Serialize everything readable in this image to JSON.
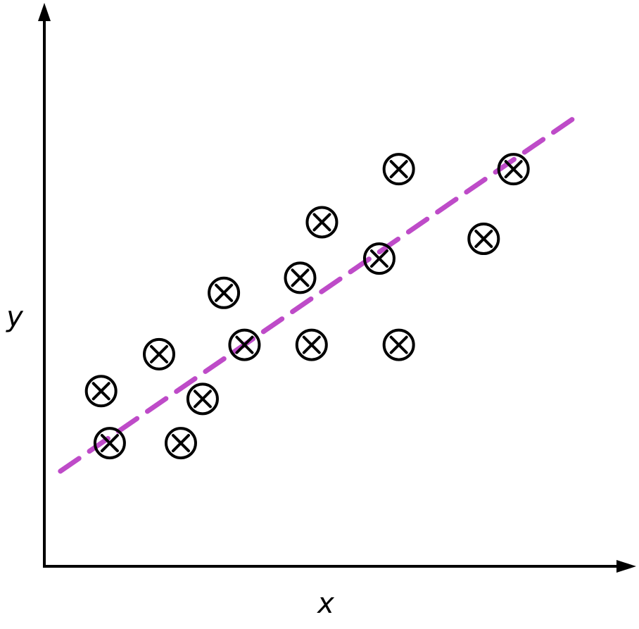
{
  "chart_data": {
    "type": "scatter",
    "title": "",
    "xlabel": "x",
    "ylabel": "y",
    "xlim": [
      0,
      100
    ],
    "ylim": [
      0,
      100
    ],
    "grid": false,
    "legend": "none",
    "marker": "circled-x",
    "series": [
      {
        "points": [
          {
            "x": 9.9,
            "y": 33.7
          },
          {
            "x": 11.4,
            "y": 23.7
          },
          {
            "x": 20.0,
            "y": 40.8
          },
          {
            "x": 23.8,
            "y": 23.7
          },
          {
            "x": 27.6,
            "y": 32.2
          },
          {
            "x": 31.3,
            "y": 52.6
          },
          {
            "x": 34.9,
            "y": 42.6
          },
          {
            "x": 44.6,
            "y": 55.5
          },
          {
            "x": 48.4,
            "y": 66.2
          },
          {
            "x": 46.6,
            "y": 42.6
          },
          {
            "x": 58.4,
            "y": 59.2
          },
          {
            "x": 61.8,
            "y": 76.4
          },
          {
            "x": 61.8,
            "y": 42.6
          },
          {
            "x": 76.6,
            "y": 63.0
          },
          {
            "x": 81.8,
            "y": 76.4
          }
        ]
      }
    ],
    "trend_line": {
      "style": "dashed",
      "color": "#BE4BC8",
      "start": {
        "x": 2.8,
        "y": 18.3
      },
      "end": {
        "x": 92.2,
        "y": 86.1
      }
    }
  }
}
